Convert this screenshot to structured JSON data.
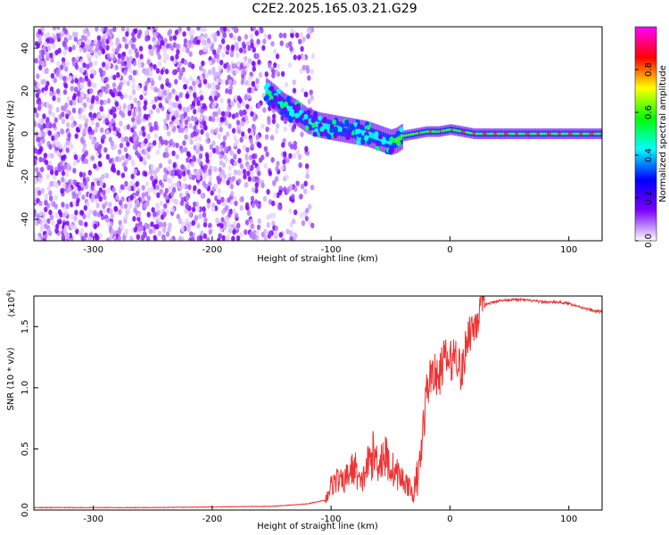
{
  "title": "C2E2.2025.165.03.21.G29",
  "chart_data": [
    {
      "type": "heatmap",
      "xlabel": "Height of straight line (km)",
      "ylabel": "Frequency (Hz)",
      "xlim": [
        -350,
        128
      ],
      "ylim": [
        -50,
        50
      ],
      "x_ticks": [
        -300,
        -200,
        -100,
        0,
        100
      ],
      "y_ticks": [
        -40,
        -20,
        0,
        20,
        40
      ],
      "x_tick_labels": [
        "-300",
        "-200",
        "-100",
        "0",
        "100"
      ],
      "y_tick_labels": [
        "-40",
        "-20",
        "0",
        "20",
        "40"
      ],
      "colorbar": {
        "label": "Normalized spectral amplitude",
        "range": [
          0,
          1
        ],
        "ticks": [
          0.0,
          0.2,
          0.4,
          0.6,
          0.8
        ],
        "tick_labels": [
          "0.0",
          "0.2",
          "0.4",
          "0.6",
          "0.8"
        ],
        "colormap": [
          "#ffffff",
          "#7a00ff",
          "#0000ff",
          "#00ffff",
          "#00ff00",
          "#ffff00",
          "#ff0000",
          "#ff00ff"
        ]
      },
      "ridge": {
        "description_points_x": [
          -155,
          -148,
          -140,
          -130,
          -120,
          -110,
          -100,
          -90,
          -80,
          -70,
          -60,
          -50,
          -45,
          -40,
          -30,
          -20,
          -10,
          0,
          10,
          20,
          40,
          60,
          80,
          100,
          128
        ],
        "description_points_y": [
          20,
          17,
          13,
          10,
          6,
          4,
          3,
          2,
          1,
          0,
          -2,
          -4,
          -3,
          -1,
          0,
          1,
          1,
          2,
          1,
          0,
          0,
          0,
          0,
          0,
          0
        ],
        "noise_region_x": [
          -350,
          -115
        ]
      }
    },
    {
      "type": "line",
      "xlabel": "Height of straight line (km)",
      "ylabel": "SNR (10 * v/v)",
      "y_multiplier": "(x10",
      "y_multiplier_exp": "4",
      "y_multiplier_close": ")",
      "xlim": [
        -350,
        128
      ],
      "ylim": [
        0,
        1.75
      ],
      "x_ticks": [
        -300,
        -200,
        -100,
        0,
        100
      ],
      "y_ticks": [
        0.0,
        0.5,
        1.0,
        1.5
      ],
      "x_tick_labels": [
        "-300",
        "-200",
        "-100",
        "0",
        "100"
      ],
      "y_tick_labels": [
        "0.0",
        "0.5",
        "1.0",
        "1.5"
      ],
      "line_color": "#ee3333",
      "series": [
        {
          "x": [
            -350,
            -300,
            -250,
            -200,
            -150,
            -120,
            -105,
            -100,
            -95,
            -90,
            -85,
            -80,
            -75,
            -70,
            -65,
            -60,
            -55,
            -50,
            -45,
            -40,
            -35,
            -30,
            -25,
            -20,
            -15,
            -10,
            -5,
            0,
            5,
            10,
            15,
            20,
            25,
            30,
            40,
            50,
            60,
            70,
            80,
            90,
            100,
            110,
            120,
            128
          ],
          "y": [
            0.02,
            0.02,
            0.02,
            0.025,
            0.03,
            0.05,
            0.08,
            0.2,
            0.25,
            0.22,
            0.3,
            0.35,
            0.2,
            0.35,
            0.45,
            0.4,
            0.45,
            0.35,
            0.3,
            0.25,
            0.2,
            0.1,
            0.4,
            0.95,
            1.15,
            1.05,
            1.25,
            1.2,
            1.3,
            1.1,
            1.45,
            1.5,
            1.62,
            1.68,
            1.71,
            1.72,
            1.72,
            1.71,
            1.7,
            1.7,
            1.69,
            1.66,
            1.63,
            1.62
          ]
        }
      ]
    }
  ]
}
